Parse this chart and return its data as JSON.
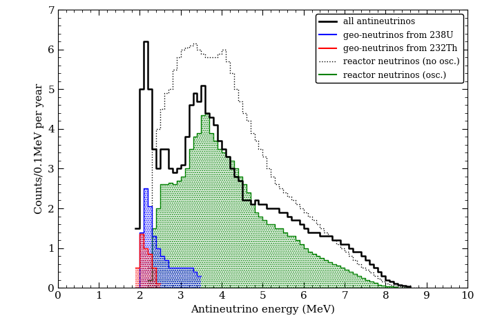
{
  "xlabel": "Antineutrino energy (MeV)",
  "ylabel": "Counts/0.1MeV per year",
  "xlim": [
    0,
    10
  ],
  "ylim": [
    0,
    7
  ],
  "xticks": [
    0,
    1,
    2,
    3,
    4,
    5,
    6,
    7,
    8,
    9,
    10
  ],
  "yticks": [
    0,
    1,
    2,
    3,
    4,
    5,
    6,
    7
  ],
  "bin_width": 0.1,
  "all_anti_bins": [
    1.9,
    2.0,
    2.1,
    2.2,
    2.3,
    2.4,
    2.5,
    2.6,
    2.7,
    2.8,
    2.9,
    3.0,
    3.1,
    3.2,
    3.3,
    3.4,
    3.5,
    3.6,
    3.7,
    3.8,
    3.9,
    4.0,
    4.1,
    4.2,
    4.3,
    4.4,
    4.5,
    4.6,
    4.7,
    4.8,
    4.9,
    5.0,
    5.1,
    5.2,
    5.3,
    5.4,
    5.5,
    5.6,
    5.7,
    5.8,
    5.9,
    6.0,
    6.1,
    6.2,
    6.3,
    6.4,
    6.5,
    6.6,
    6.7,
    6.8,
    6.9,
    7.0,
    7.1,
    7.2,
    7.3,
    7.4,
    7.5,
    7.6,
    7.7,
    7.8,
    7.9,
    8.0,
    8.1,
    8.2,
    8.3,
    8.4,
    8.5
  ],
  "all_anti_vals": [
    1.5,
    5.0,
    6.2,
    5.0,
    3.5,
    3.0,
    3.5,
    3.5,
    3.0,
    2.9,
    3.0,
    3.1,
    3.8,
    4.6,
    4.9,
    4.7,
    5.1,
    4.4,
    4.3,
    4.1,
    3.7,
    3.5,
    3.3,
    3.0,
    2.8,
    2.7,
    2.2,
    2.2,
    2.1,
    2.2,
    2.1,
    2.1,
    2.0,
    2.0,
    2.0,
    1.9,
    1.9,
    1.8,
    1.7,
    1.7,
    1.6,
    1.5,
    1.4,
    1.4,
    1.4,
    1.3,
    1.3,
    1.3,
    1.2,
    1.2,
    1.1,
    1.1,
    1.0,
    0.9,
    0.9,
    0.8,
    0.7,
    0.6,
    0.5,
    0.4,
    0.3,
    0.2,
    0.15,
    0.1,
    0.07,
    0.05,
    0.03
  ],
  "geo_U238_bins": [
    1.9,
    2.0,
    2.1,
    2.2,
    2.3,
    2.4,
    2.5,
    2.6,
    2.7,
    2.8,
    2.9,
    3.0,
    3.1,
    3.2,
    3.3,
    3.4
  ],
  "geo_U238_vals": [
    0.0,
    1.4,
    2.5,
    2.05,
    1.3,
    1.0,
    0.8,
    0.7,
    0.5,
    0.5,
    0.5,
    0.5,
    0.5,
    0.5,
    0.4,
    0.3
  ],
  "geo_Th232_bins": [
    1.9,
    2.0,
    2.1,
    2.2,
    2.3,
    2.4
  ],
  "geo_Th232_vals": [
    0.5,
    1.35,
    1.0,
    0.85,
    0.5,
    0.1
  ],
  "reactor_noosc_bins": [
    2.2,
    2.3,
    2.4,
    2.5,
    2.6,
    2.7,
    2.8,
    2.9,
    3.0,
    3.1,
    3.2,
    3.3,
    3.4,
    3.5,
    3.6,
    3.7,
    3.8,
    3.9,
    4.0,
    4.1,
    4.2,
    4.3,
    4.4,
    4.5,
    4.6,
    4.7,
    4.8,
    4.9,
    5.0,
    5.1,
    5.2,
    5.3,
    5.4,
    5.5,
    5.6,
    5.7,
    5.8,
    5.9,
    6.0,
    6.1,
    6.2,
    6.3,
    6.4,
    6.5,
    6.6,
    6.7,
    6.8,
    6.9,
    7.0,
    7.1,
    7.2,
    7.3,
    7.4,
    7.5,
    7.6,
    7.7,
    7.8,
    7.9,
    8.0,
    8.1,
    8.2,
    8.3,
    8.4,
    8.5,
    8.6,
    8.7,
    8.8
  ],
  "reactor_noosc_vals": [
    0.5,
    3.5,
    4.0,
    4.5,
    4.9,
    5.0,
    5.5,
    5.8,
    6.0,
    6.05,
    6.1,
    6.15,
    6.0,
    5.9,
    5.8,
    5.8,
    5.8,
    5.9,
    6.0,
    5.7,
    5.4,
    5.0,
    4.7,
    4.4,
    4.2,
    3.9,
    3.7,
    3.5,
    3.3,
    3.0,
    2.8,
    2.6,
    2.5,
    2.4,
    2.3,
    2.2,
    2.1,
    2.0,
    1.9,
    1.8,
    1.7,
    1.6,
    1.5,
    1.4,
    1.3,
    1.2,
    1.1,
    1.0,
    0.9,
    0.8,
    0.7,
    0.6,
    0.5,
    0.45,
    0.38,
    0.3,
    0.22,
    0.15,
    0.1,
    0.07,
    0.05,
    0.03,
    0.02,
    0.01,
    0.0,
    0.0,
    0.0
  ],
  "reactor_osc_bins": [
    2.2,
    2.3,
    2.4,
    2.5,
    2.6,
    2.7,
    2.8,
    2.9,
    3.0,
    3.1,
    3.2,
    3.3,
    3.4,
    3.5,
    3.6,
    3.7,
    3.8,
    3.9,
    4.0,
    4.1,
    4.2,
    4.3,
    4.4,
    4.5,
    4.6,
    4.7,
    4.8,
    4.9,
    5.0,
    5.1,
    5.2,
    5.3,
    5.4,
    5.5,
    5.6,
    5.7,
    5.8,
    5.9,
    6.0,
    6.1,
    6.2,
    6.3,
    6.4,
    6.5,
    6.6,
    6.7,
    6.8,
    6.9,
    7.0,
    7.1,
    7.2,
    7.3,
    7.4,
    7.5,
    7.6,
    7.7,
    7.8,
    7.9,
    8.0,
    8.1,
    8.2,
    8.3,
    8.4,
    8.5
  ],
  "reactor_osc_vals": [
    0.2,
    1.5,
    2.0,
    2.6,
    2.6,
    2.65,
    2.6,
    2.7,
    2.8,
    3.0,
    3.5,
    3.8,
    3.9,
    4.35,
    4.4,
    3.9,
    3.7,
    3.5,
    3.4,
    3.3,
    3.2,
    3.0,
    2.8,
    2.6,
    2.4,
    2.1,
    1.9,
    1.8,
    1.7,
    1.6,
    1.6,
    1.5,
    1.5,
    1.4,
    1.3,
    1.3,
    1.2,
    1.1,
    1.0,
    0.9,
    0.85,
    0.8,
    0.75,
    0.7,
    0.65,
    0.6,
    0.55,
    0.5,
    0.45,
    0.4,
    0.35,
    0.3,
    0.25,
    0.2,
    0.15,
    0.12,
    0.08,
    0.06,
    0.04,
    0.03,
    0.02,
    0.01,
    0.0,
    0.0
  ],
  "figsize": [
    6.98,
    4.74
  ],
  "dpi": 100
}
